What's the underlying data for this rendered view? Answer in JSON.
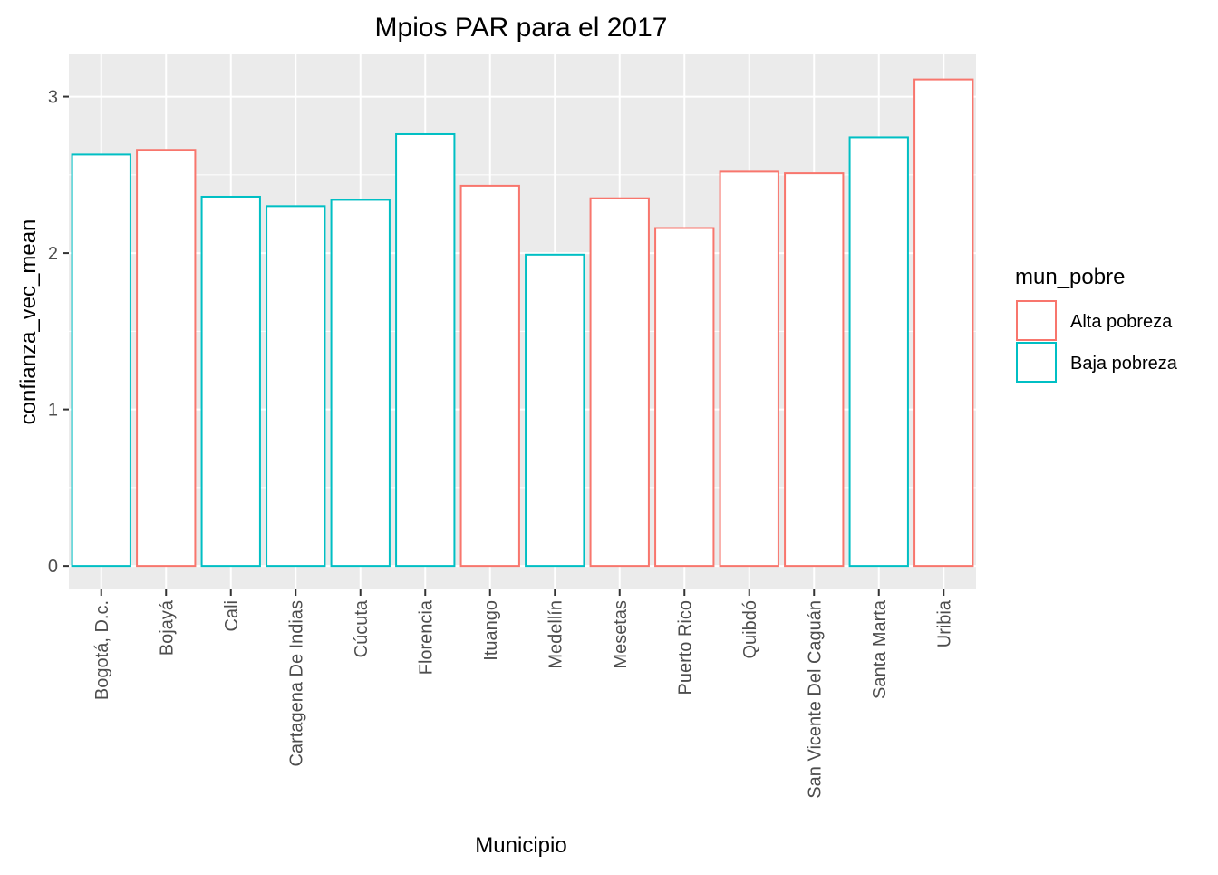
{
  "chart_data": {
    "type": "bar",
    "title": "Mpios PAR para el 2017",
    "xlabel": "Municipio",
    "ylabel": "confianza_vec_mean",
    "categories": [
      "Bogotá, D.c.",
      "Bojayá",
      "Cali",
      "Cartagena De Indias",
      "Cúcuta",
      "Florencia",
      "Ituango",
      "Medellín",
      "Mesetas",
      "Puerto Rico",
      "Quibdó",
      "San Vicente Del Caguán",
      "Santa Marta",
      "Uribia"
    ],
    "values": [
      2.63,
      2.66,
      2.36,
      2.3,
      2.34,
      2.76,
      2.43,
      1.99,
      2.35,
      2.16,
      2.52,
      2.51,
      2.74,
      3.11
    ],
    "groups": [
      "Baja pobreza",
      "Alta pobreza",
      "Baja pobreza",
      "Baja pobreza",
      "Baja pobreza",
      "Baja pobreza",
      "Alta pobreza",
      "Baja pobreza",
      "Alta pobreza",
      "Alta pobreza",
      "Alta pobreza",
      "Alta pobreza",
      "Baja pobreza",
      "Alta pobreza"
    ],
    "ylim": [
      -0.15,
      3.27
    ],
    "yticks": [
      0,
      1,
      2,
      3
    ],
    "legend": {
      "title": "mun_pobre",
      "position": "right",
      "entries": [
        {
          "label": "Alta pobreza",
          "color": "#F8766D"
        },
        {
          "label": "Baja pobreza",
          "color": "#00BFC4"
        }
      ]
    },
    "panel_color": "#EBEBEB",
    "grid": true
  }
}
